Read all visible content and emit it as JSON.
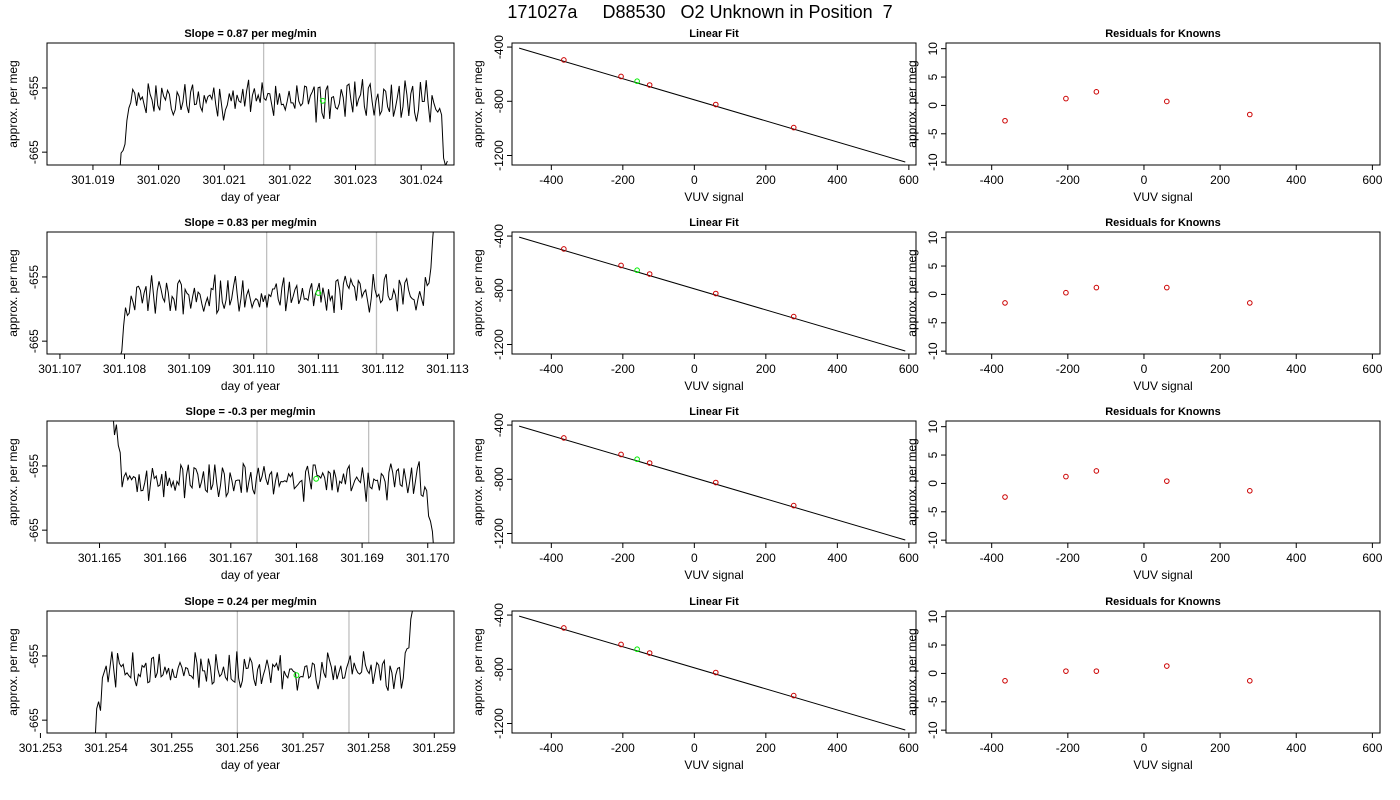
{
  "title": "171027a     D88530   O2 Unknown in Position  7",
  "colors": {
    "line": "#000000",
    "green": "#00ee00",
    "red": "#cc0000",
    "vline": "#c0c0c0",
    "axis": "#000000"
  },
  "chart_data": [
    {
      "type": "line",
      "title": "Slope =  0.87  per meg/min",
      "xlabel": "day of year",
      "ylabel": "approx. per meg",
      "xlim": [
        301.0183,
        301.0245
      ],
      "ylim": [
        -667,
        -648
      ],
      "xticks": [
        301.019,
        301.02,
        301.021,
        301.022,
        301.023,
        301.024
      ],
      "xtick_labels": [
        "301.019",
        "301.020",
        "301.021",
        "301.022",
        "301.023",
        "301.024"
      ],
      "yticks": [
        -655,
        -665
      ],
      "ytick_labels": [
        "-655",
        "-665"
      ],
      "vlines": [
        301.0216,
        301.0233
      ],
      "marker": {
        "x": 301.0225,
        "y": -657,
        "color": "green"
      },
      "series_params": {
        "start": 301.0194,
        "end": 301.0244,
        "base": -657,
        "amp": 2.2,
        "seed": 1,
        "edgeL": "down",
        "edgeR": "down"
      }
    },
    {
      "type": "scatter",
      "title": "Linear Fit",
      "xlabel": "VUV signal",
      "ylabel": "approx. per meg",
      "xlim": [
        -510,
        620
      ],
      "ylim": [
        -1270,
        -370
      ],
      "xticks": [
        -400,
        -200,
        0,
        200,
        400,
        600
      ],
      "xtick_labels": [
        "-400",
        "-200",
        "0",
        "200",
        "400",
        "600"
      ],
      "yticks": [
        -400,
        -800,
        -1200
      ],
      "ytick_labels": [
        "-400",
        "-800",
        "-1200"
      ],
      "fit_line": {
        "x": [
          -490,
          590
        ],
        "y": [
          -408,
          -1248
        ]
      },
      "points": {
        "x": [
          -365,
          -205,
          -125,
          60,
          278
        ],
        "y": [
          -495,
          -617,
          -680,
          -824,
          -994
        ]
      },
      "unknown": {
        "x": -160,
        "y": -652
      }
    },
    {
      "type": "scatter",
      "title": "Residuals for Knowns",
      "xlabel": "VUV signal",
      "ylabel": "approx. per meg",
      "xlim": [
        -520,
        620
      ],
      "ylim": [
        -10.5,
        11
      ],
      "xticks": [
        -400,
        -200,
        0,
        200,
        400,
        600
      ],
      "xtick_labels": [
        "-400",
        "-200",
        "0",
        "200",
        "400",
        "600"
      ],
      "yticks": [
        10,
        5,
        0,
        -5,
        -10
      ],
      "ytick_labels": [
        "10",
        "5",
        "0",
        "-5",
        "-10"
      ],
      "points": {
        "x": [
          -365,
          -205,
          -125,
          60,
          278
        ],
        "y": [
          -2.7,
          1.2,
          2.4,
          0.7,
          -1.6
        ]
      }
    },
    {
      "type": "line",
      "title": "Slope =  0.83  per meg/min",
      "xlabel": "day of year",
      "ylabel": "approx. per meg",
      "xlim": [
        301.1068,
        301.1131
      ],
      "ylim": [
        -667,
        -648
      ],
      "xticks": [
        301.107,
        301.108,
        301.109,
        301.11,
        301.111,
        301.112,
        301.113
      ],
      "xtick_labels": [
        "301.107",
        "301.108",
        "301.109",
        "301.110",
        "301.111",
        "301.112",
        "301.113"
      ],
      "yticks": [
        -655,
        -665
      ],
      "ytick_labels": [
        "-655",
        "-665"
      ],
      "vlines": [
        301.1102,
        301.1119
      ],
      "marker": {
        "x": 301.111,
        "y": -657.5,
        "color": "green"
      },
      "series_params": {
        "start": 301.1079,
        "end": 301.1128,
        "base": -657.5,
        "amp": 2.2,
        "seed": 2,
        "edgeL": "down",
        "edgeR": "up"
      }
    },
    {
      "type": "scatter",
      "title": "Linear Fit",
      "xlabel": "VUV signal",
      "ylabel": "approx. per meg",
      "xlim": [
        -510,
        620
      ],
      "ylim": [
        -1270,
        -370
      ],
      "xticks": [
        -400,
        -200,
        0,
        200,
        400,
        600
      ],
      "xtick_labels": [
        "-400",
        "-200",
        "0",
        "200",
        "400",
        "600"
      ],
      "yticks": [
        -400,
        -800,
        -1200
      ],
      "ytick_labels": [
        "-400",
        "-800",
        "-1200"
      ],
      "fit_line": {
        "x": [
          -490,
          590
        ],
        "y": [
          -408,
          -1248
        ]
      },
      "points": {
        "x": [
          -365,
          -205,
          -125,
          60,
          278
        ],
        "y": [
          -495,
          -617,
          -680,
          -824,
          -994
        ]
      },
      "unknown": {
        "x": -160,
        "y": -652
      }
    },
    {
      "type": "scatter",
      "title": "Residuals for Knowns",
      "xlabel": "VUV signal",
      "ylabel": "approx. per meg",
      "xlim": [
        -520,
        620
      ],
      "ylim": [
        -10.5,
        11
      ],
      "xticks": [
        -400,
        -200,
        0,
        200,
        400,
        600
      ],
      "xtick_labels": [
        "-400",
        "-200",
        "0",
        "200",
        "400",
        "600"
      ],
      "yticks": [
        10,
        5,
        0,
        -5,
        -10
      ],
      "ytick_labels": [
        "10",
        "5",
        "0",
        "-5",
        "-10"
      ],
      "points": {
        "x": [
          -365,
          -205,
          -125,
          60,
          278
        ],
        "y": [
          -1.5,
          0.3,
          1.2,
          1.2,
          -1.5
        ]
      }
    },
    {
      "type": "line",
      "title": "Slope =  -0.3  per meg/min",
      "xlabel": "day of year",
      "ylabel": "approx. per meg",
      "xlim": [
        301.1642,
        301.1704
      ],
      "ylim": [
        -667,
        -648
      ],
      "xticks": [
        301.165,
        301.166,
        301.167,
        301.168,
        301.169,
        301.17
      ],
      "xtick_labels": [
        "301.165",
        "301.166",
        "301.167",
        "301.168",
        "301.169",
        "301.170"
      ],
      "yticks": [
        -655,
        -665
      ],
      "ytick_labels": [
        "-655",
        "-665"
      ],
      "vlines": [
        301.1674,
        301.1691
      ],
      "marker": {
        "x": 301.1683,
        "y": -657,
        "color": "green"
      },
      "series_params": {
        "start": 301.1652,
        "end": 301.1701,
        "base": -657.5,
        "amp": 2.2,
        "seed": 3,
        "edgeL": "up",
        "edgeR": "down"
      }
    },
    {
      "type": "scatter",
      "title": "Linear Fit",
      "xlabel": "VUV signal",
      "ylabel": "approx. per meg",
      "xlim": [
        -510,
        620
      ],
      "ylim": [
        -1270,
        -370
      ],
      "xticks": [
        -400,
        -200,
        0,
        200,
        400,
        600
      ],
      "xtick_labels": [
        "-400",
        "-200",
        "0",
        "200",
        "400",
        "600"
      ],
      "yticks": [
        -400,
        -800,
        -1200
      ],
      "ytick_labels": [
        "-400",
        "-800",
        "-1200"
      ],
      "fit_line": {
        "x": [
          -490,
          590
        ],
        "y": [
          -408,
          -1248
        ]
      },
      "points": {
        "x": [
          -365,
          -205,
          -125,
          60,
          278
        ],
        "y": [
          -495,
          -617,
          -680,
          -824,
          -994
        ]
      },
      "unknown": {
        "x": -160,
        "y": -652
      }
    },
    {
      "type": "scatter",
      "title": "Residuals for Knowns",
      "xlabel": "VUV signal",
      "ylabel": "approx. per meg",
      "xlim": [
        -520,
        620
      ],
      "ylim": [
        -10.5,
        11
      ],
      "xticks": [
        -400,
        -200,
        0,
        200,
        400,
        600
      ],
      "xtick_labels": [
        "-400",
        "-200",
        "0",
        "200",
        "400",
        "600"
      ],
      "yticks": [
        10,
        5,
        0,
        -5,
        -10
      ],
      "ytick_labels": [
        "10",
        "5",
        "0",
        "-5",
        "-10"
      ],
      "points": {
        "x": [
          -365,
          -205,
          -125,
          60,
          278
        ],
        "y": [
          -2.4,
          1.2,
          2.2,
          0.4,
          -1.3
        ]
      }
    },
    {
      "type": "line",
      "title": "Slope =  0.24  per meg/min",
      "xlabel": "day of year",
      "ylabel": "approx. per meg",
      "xlim": [
        301.2531,
        301.2593
      ],
      "ylim": [
        -667,
        -648
      ],
      "xticks": [
        301.253,
        301.254,
        301.255,
        301.256,
        301.257,
        301.258,
        301.259
      ],
      "xtick_labels": [
        "301.253",
        "301.254",
        "301.255",
        "301.256",
        "301.257",
        "301.258",
        "301.259"
      ],
      "yticks": [
        -655,
        -665
      ],
      "ytick_labels": [
        "-655",
        "-665"
      ],
      "vlines": [
        301.256,
        301.2577
      ],
      "marker": {
        "x": 301.2569,
        "y": -658,
        "color": "green"
      },
      "series_params": {
        "start": 301.2538,
        "end": 301.2587,
        "base": -657.5,
        "amp": 2.2,
        "seed": 4,
        "edgeL": "down",
        "edgeR": "up"
      }
    },
    {
      "type": "scatter",
      "title": "Linear Fit",
      "xlabel": "VUV signal",
      "ylabel": "approx. per meg",
      "xlim": [
        -510,
        620
      ],
      "ylim": [
        -1270,
        -370
      ],
      "xticks": [
        -400,
        -200,
        0,
        200,
        400,
        600
      ],
      "xtick_labels": [
        "-400",
        "-200",
        "0",
        "200",
        "400",
        "600"
      ],
      "yticks": [
        -400,
        -800,
        -1200
      ],
      "ytick_labels": [
        "-400",
        "-800",
        "-1200"
      ],
      "fit_line": {
        "x": [
          -490,
          590
        ],
        "y": [
          -408,
          -1248
        ]
      },
      "points": {
        "x": [
          -365,
          -205,
          -125,
          60,
          278
        ],
        "y": [
          -495,
          -617,
          -680,
          -824,
          -994
        ]
      },
      "unknown": {
        "x": -160,
        "y": -652
      }
    },
    {
      "type": "scatter",
      "title": "Residuals for Knowns",
      "xlabel": "VUV signal",
      "ylabel": "approx. per meg",
      "xlim": [
        -520,
        620
      ],
      "ylim": [
        -10.5,
        11
      ],
      "xticks": [
        -400,
        -200,
        0,
        200,
        400,
        600
      ],
      "xtick_labels": [
        "-400",
        "-200",
        "0",
        "200",
        "400",
        "600"
      ],
      "yticks": [
        10,
        5,
        0,
        -5,
        -10
      ],
      "ytick_labels": [
        "10",
        "5",
        "0",
        "-5",
        "-10"
      ],
      "points": {
        "x": [
          -365,
          -205,
          -125,
          60,
          278
        ],
        "y": [
          -1.3,
          0.4,
          0.4,
          1.3,
          -1.3
        ]
      }
    }
  ]
}
